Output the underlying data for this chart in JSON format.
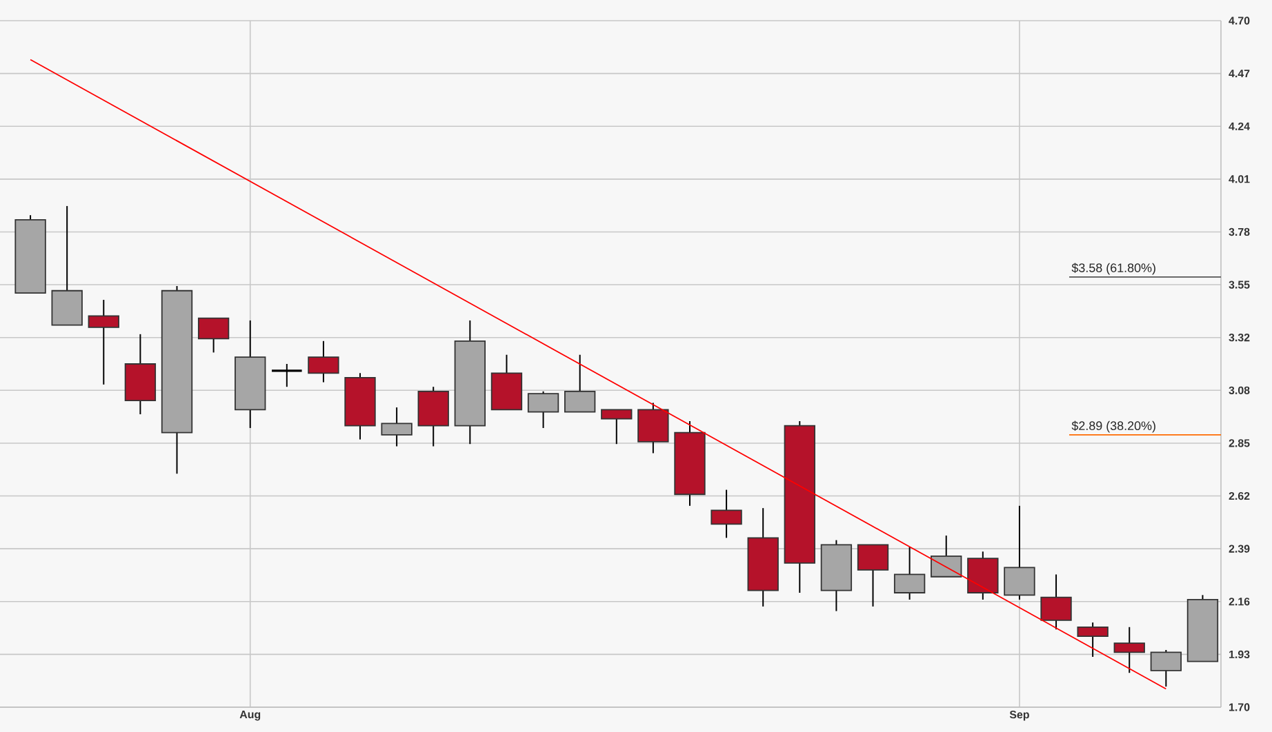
{
  "chart_data": {
    "type": "candlestick",
    "categories": [
      null,
      null,
      null,
      null,
      null,
      null,
      "Aug",
      null,
      null,
      null,
      null,
      null,
      null,
      null,
      null,
      null,
      null,
      null,
      null,
      null,
      null,
      null,
      null,
      null,
      null,
      null,
      null,
      "Sep",
      null,
      null,
      null,
      null,
      null
    ],
    "ylim": [
      1.7,
      4.7
    ],
    "yticks": [
      {
        "value": 1.7,
        "label": "1.70"
      },
      {
        "value": 1.9308,
        "label": "1.93"
      },
      {
        "value": 2.1615,
        "label": "2.16"
      },
      {
        "value": 2.3923,
        "label": "2.39"
      },
      {
        "value": 2.6231,
        "label": "2.62"
      },
      {
        "value": 2.8538,
        "label": "2.85"
      },
      {
        "value": 3.0846,
        "label": "3.08"
      },
      {
        "value": 3.3154,
        "label": "3.32"
      },
      {
        "value": 3.5462,
        "label": "3.55"
      },
      {
        "value": 3.7769,
        "label": "3.78"
      },
      {
        "value": 4.0077,
        "label": "4.01"
      },
      {
        "value": 4.2385,
        "label": "4.24"
      },
      {
        "value": 4.4692,
        "label": "4.47"
      },
      {
        "value": 4.7,
        "label": "4.70"
      }
    ],
    "grid": true,
    "series": [
      {
        "ohlc": [
          [
            3.51,
            3.85,
            3.51,
            3.83
          ],
          [
            3.37,
            3.89,
            3.37,
            3.52
          ],
          [
            3.41,
            3.48,
            3.11,
            3.36
          ],
          [
            3.2,
            3.33,
            2.98,
            3.04
          ],
          [
            2.9,
            3.54,
            2.72,
            3.52
          ],
          [
            3.4,
            3.4,
            3.25,
            3.31
          ],
          [
            3.0,
            3.39,
            2.92,
            3.23
          ],
          [
            3.17,
            3.2,
            3.1,
            3.17
          ],
          [
            3.23,
            3.3,
            3.12,
            3.16
          ],
          [
            3.14,
            3.16,
            2.87,
            2.93
          ],
          [
            2.89,
            3.01,
            2.84,
            2.94
          ],
          [
            3.08,
            3.1,
            2.84,
            2.93
          ],
          [
            2.93,
            3.39,
            2.85,
            3.3
          ],
          [
            3.16,
            3.24,
            3.0,
            3.0
          ],
          [
            2.99,
            3.08,
            2.92,
            3.07
          ],
          [
            2.99,
            3.24,
            2.99,
            3.08
          ],
          [
            3.0,
            3.0,
            2.85,
            2.96
          ],
          [
            3.0,
            3.03,
            2.81,
            2.86
          ],
          [
            2.9,
            2.95,
            2.58,
            2.63
          ],
          [
            2.56,
            2.65,
            2.44,
            2.5
          ],
          [
            2.44,
            2.57,
            2.14,
            2.21
          ],
          [
            2.93,
            2.95,
            2.2,
            2.33
          ],
          [
            2.21,
            2.43,
            2.12,
            2.41
          ],
          [
            2.41,
            2.41,
            2.14,
            2.3
          ],
          [
            2.2,
            2.4,
            2.17,
            2.28
          ],
          [
            2.27,
            2.45,
            2.27,
            2.36
          ],
          [
            2.35,
            2.38,
            2.17,
            2.2
          ],
          [
            2.19,
            2.58,
            2.17,
            2.31
          ],
          [
            2.18,
            2.28,
            2.04,
            2.08
          ],
          [
            2.05,
            2.07,
            1.92,
            2.01
          ],
          [
            1.98,
            2.05,
            1.85,
            1.94
          ],
          [
            1.86,
            1.95,
            1.79,
            1.94
          ],
          [
            1.9,
            2.19,
            1.9,
            2.17
          ]
        ],
        "colors": [
          "#a6a6a6",
          "#a6a6a6",
          "#b5122a",
          "#b5122a",
          "#a6a6a6",
          "#b5122a",
          "#a6a6a6",
          "#000000",
          "#b5122a",
          "#b5122a",
          "#a6a6a6",
          "#b5122a",
          "#a6a6a6",
          "#b5122a",
          "#a6a6a6",
          "#a6a6a6",
          "#b5122a",
          "#b5122a",
          "#b5122a",
          "#b5122a",
          "#b5122a",
          "#b5122a",
          "#a6a6a6",
          "#b5122a",
          "#a6a6a6",
          "#a6a6a6",
          "#b5122a",
          "#a6a6a6",
          "#b5122a",
          "#b5122a",
          "#b5122a",
          "#a6a6a6",
          "#a6a6a6"
        ]
      },
      {
        "type": "line",
        "values": [
          4.53,
          null,
          null,
          null,
          null,
          null,
          null,
          null,
          null,
          null,
          null,
          null,
          null,
          null,
          null,
          null,
          null,
          null,
          null,
          null,
          null,
          null,
          null,
          null,
          null,
          null,
          null,
          null,
          null,
          null,
          null,
          1.78,
          null
        ],
        "color": "#ff0000"
      }
    ],
    "ref_lines": [
      {
        "axis": "y",
        "value": 3.58,
        "label": "$3.58 (61.80%)",
        "color": "#555555"
      },
      {
        "axis": "y",
        "value": 2.89,
        "label": "$2.89 (38.20%)",
        "color": "#ff6a00"
      }
    ]
  }
}
